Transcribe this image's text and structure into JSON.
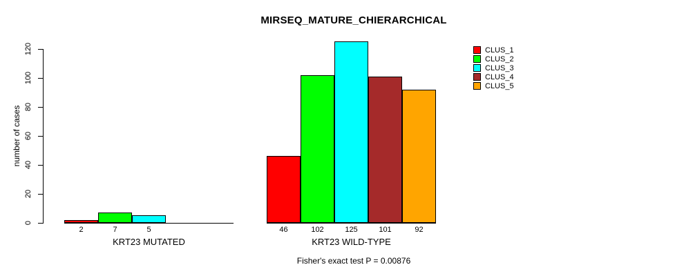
{
  "title": "MIRSEQ_MATURE_CHIERARCHICAL",
  "subtitle": "Fisher's exact test P = 0.00876",
  "legend": {
    "items": [
      {
        "label": "CLUS_1",
        "color": "#ff0000"
      },
      {
        "label": "CLUS_2",
        "color": "#00ff00"
      },
      {
        "label": "CLUS_3",
        "color": "#00ffff"
      },
      {
        "label": "CLUS_4",
        "color": "#a52a2a"
      },
      {
        "label": "CLUS_5",
        "color": "#ffa500"
      }
    ]
  },
  "chart_data": {
    "type": "bar",
    "title": "MIRSEQ_MATURE_CHIERARCHICAL",
    "ylabel": "number of cases",
    "xlabel": "",
    "ylim": [
      0,
      125
    ],
    "yticks": [
      0,
      20,
      40,
      60,
      80,
      100,
      120
    ],
    "grid": false,
    "legend_position": "top-right",
    "series": [
      {
        "name": "CLUS_1",
        "color": "#ff0000",
        "values": [
          2,
          46
        ]
      },
      {
        "name": "CLUS_2",
        "color": "#00ff00",
        "values": [
          7,
          102
        ]
      },
      {
        "name": "CLUS_3",
        "color": "#00ffff",
        "values": [
          5,
          125
        ]
      },
      {
        "name": "CLUS_4",
        "color": "#a52a2a",
        "values": [
          0,
          101
        ]
      },
      {
        "name": "CLUS_5",
        "color": "#ffa500",
        "values": [
          0,
          92
        ]
      }
    ],
    "groups": [
      {
        "label": "KRT23 MUTATED",
        "values": [
          2,
          7,
          5,
          0,
          0
        ],
        "bar_labels": [
          "2",
          "7",
          "5",
          "",
          ""
        ]
      },
      {
        "label": "KRT23 WILD-TYPE",
        "values": [
          46,
          102,
          125,
          101,
          92
        ],
        "bar_labels": [
          "46",
          "102",
          "125",
          "101",
          "92"
        ]
      }
    ],
    "annotation": "Fisher's exact test P = 0.00876"
  }
}
